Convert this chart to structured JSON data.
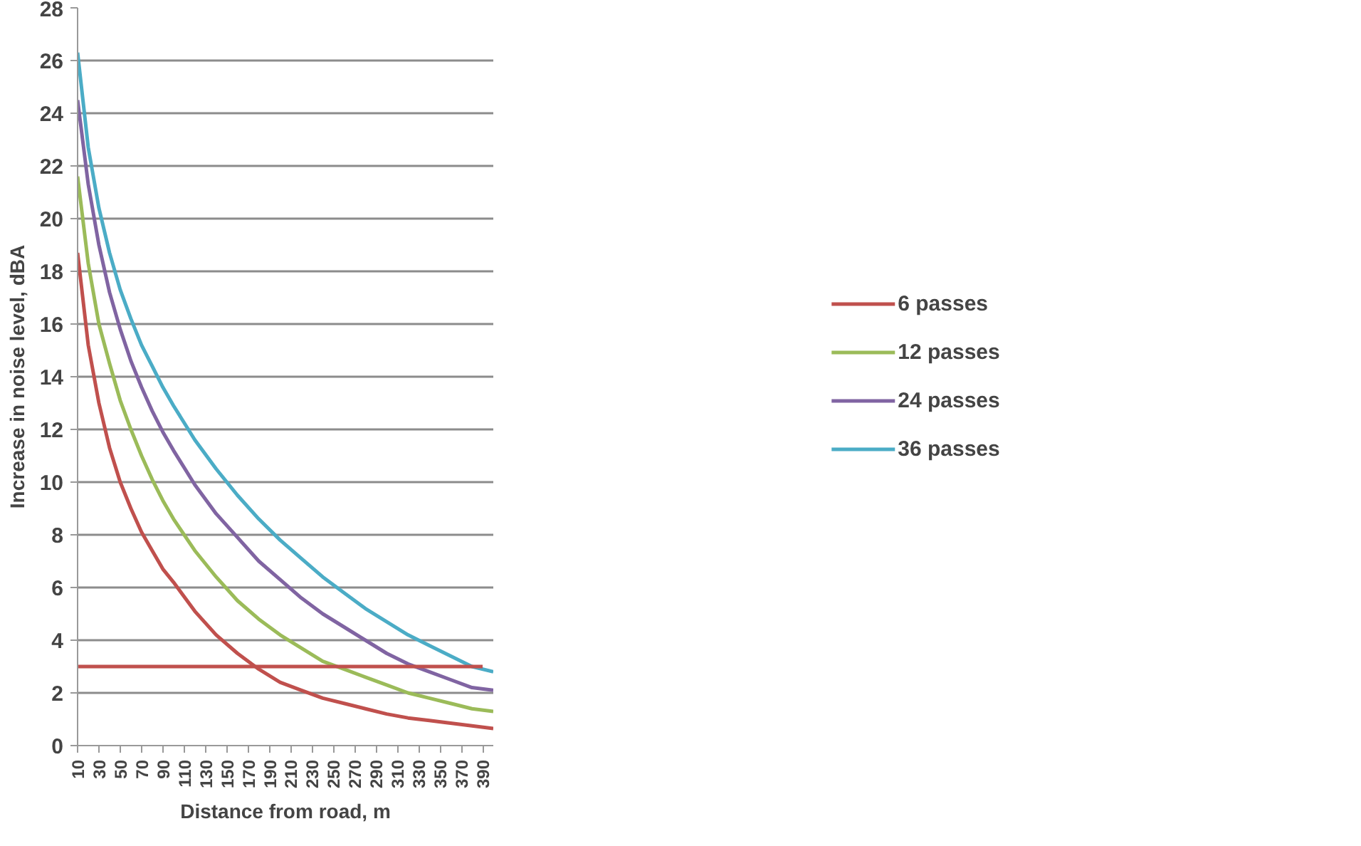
{
  "chart_data": {
    "type": "line",
    "xlabel": "Distance from road, m",
    "ylabel": "Increase in noise level, dBA",
    "xlim": [
      10,
      400
    ],
    "xticks": [
      10,
      30,
      50,
      70,
      90,
      110,
      130,
      150,
      170,
      190,
      210,
      230,
      250,
      270,
      290,
      310,
      330,
      350,
      370,
      390
    ],
    "ylim": [
      0,
      28
    ],
    "yticks": [
      0,
      2,
      4,
      6,
      8,
      10,
      12,
      14,
      16,
      18,
      20,
      22,
      24,
      26,
      28
    ],
    "grid": "y",
    "legend": "right",
    "marker": "none",
    "line_style": "solid",
    "x": [
      10,
      20,
      30,
      40,
      50,
      60,
      70,
      80,
      90,
      100,
      120,
      140,
      160,
      180,
      200,
      220,
      240,
      260,
      280,
      300,
      320,
      340,
      360,
      380,
      400
    ],
    "series": [
      {
        "name": "6 passes",
        "color": "#c0504d",
        "values": [
          18.7,
          15.2,
          13,
          11.3,
          10,
          9,
          8.1,
          7.4,
          6.7,
          6.2,
          5.1,
          4.2,
          3.5,
          2.9,
          2.4,
          2.1,
          1.8,
          1.6,
          1.4,
          1.2,
          1.05,
          0.95,
          0.85,
          0.75,
          0.65
        ]
      },
      {
        "name": "12 passes",
        "color": "#9bbb59",
        "values": [
          21.6,
          18.3,
          16,
          14.5,
          13.1,
          12,
          11,
          10.1,
          9.3,
          8.6,
          7.4,
          6.4,
          5.5,
          4.8,
          4.2,
          3.7,
          3.2,
          2.9,
          2.6,
          2.3,
          2.0,
          1.8,
          1.6,
          1.4,
          1.3
        ]
      },
      {
        "name": "24 passes",
        "color": "#8064a2",
        "values": [
          24.5,
          21.3,
          19,
          17.2,
          15.8,
          14.6,
          13.6,
          12.7,
          11.9,
          11.2,
          9.9,
          8.8,
          7.9,
          7.0,
          6.3,
          5.6,
          5.0,
          4.5,
          4.0,
          3.5,
          3.1,
          2.8,
          2.5,
          2.2,
          2.1
        ]
      },
      {
        "name": "36 passes",
        "color": "#4bacc6",
        "values": [
          26.3,
          22.7,
          20.4,
          18.7,
          17.3,
          16.2,
          15.2,
          14.4,
          13.6,
          12.9,
          11.6,
          10.5,
          9.5,
          8.6,
          7.8,
          7.1,
          6.4,
          5.8,
          5.2,
          4.7,
          4.2,
          3.8,
          3.4,
          3.0,
          2.8
        ]
      },
      {
        "color": "#c0504d",
        "x": [
          10,
          390
        ],
        "values": [
          3,
          3
        ]
      }
    ]
  }
}
